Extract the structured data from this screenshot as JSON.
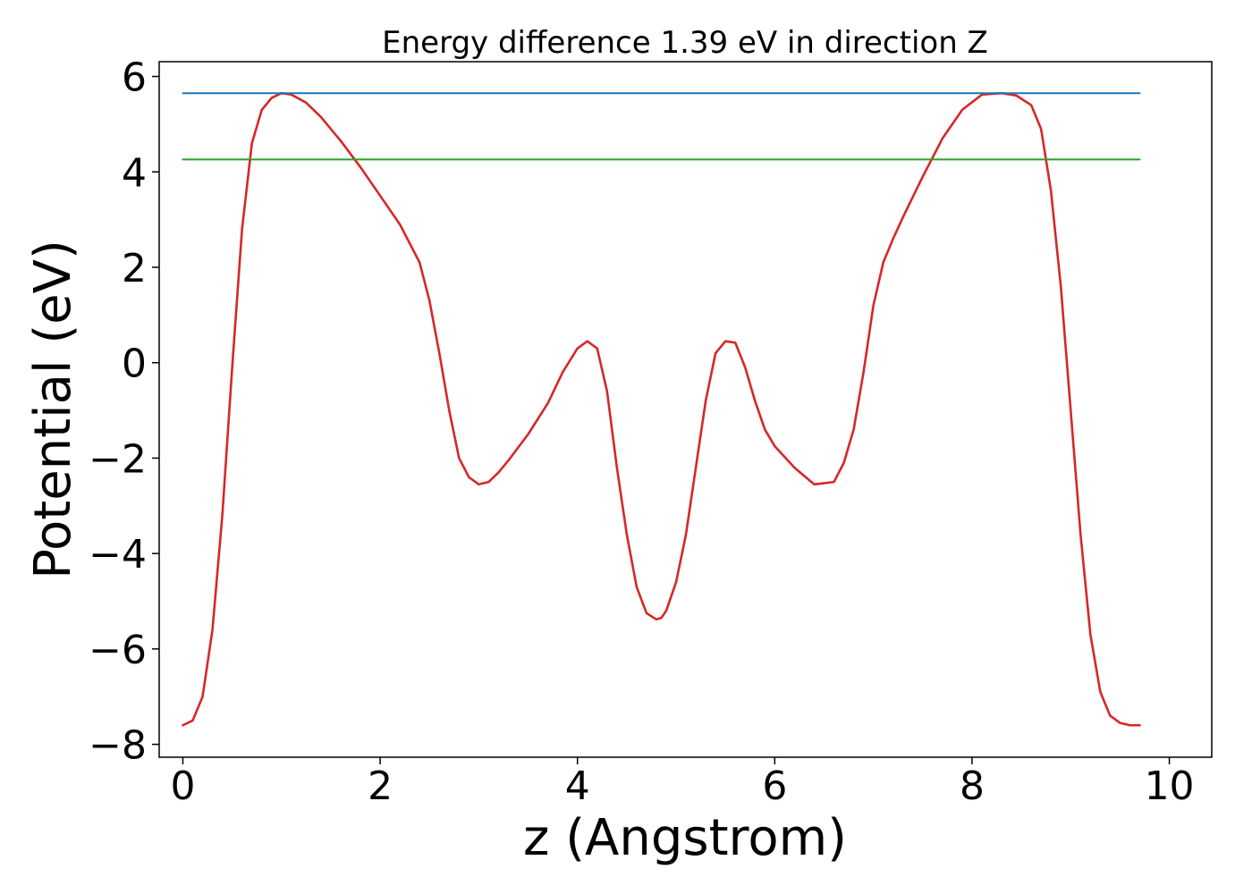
{
  "chart_data": {
    "type": "line",
    "title": "Energy difference 1.39 eV in direction Z",
    "xlabel": "z (Angstrom)",
    "ylabel": "Potential (eV)",
    "xlim": [
      -0.24,
      10.43
    ],
    "ylim": [
      -8.27,
      6.31
    ],
    "xticks": [
      0,
      2,
      4,
      6,
      8,
      10
    ],
    "xtick_labels": [
      "0",
      "2",
      "4",
      "6",
      "8",
      "10"
    ],
    "yticks": [
      -8,
      -6,
      -4,
      -2,
      0,
      2,
      4,
      6
    ],
    "ytick_labels": [
      "−8",
      "−6",
      "−4",
      "−2",
      "0",
      "2",
      "4",
      "6"
    ],
    "grid": false,
    "legend": "none",
    "series": [
      {
        "color": "#d62728",
        "x": [
          0.0,
          0.1,
          0.2,
          0.3,
          0.4,
          0.5,
          0.6,
          0.7,
          0.8,
          0.9,
          1.0,
          1.1,
          1.25,
          1.4,
          1.6,
          1.8,
          2.0,
          2.2,
          2.4,
          2.5,
          2.6,
          2.7,
          2.8,
          2.9,
          3.0,
          3.1,
          3.2,
          3.3,
          3.5,
          3.7,
          3.85,
          4.0,
          4.1,
          4.2,
          4.3,
          4.4,
          4.5,
          4.6,
          4.7,
          4.8,
          4.85,
          4.9,
          5.0,
          5.1,
          5.2,
          5.3,
          5.4,
          5.5,
          5.6,
          5.7,
          5.8,
          5.9,
          6.0,
          6.2,
          6.4,
          6.6,
          6.7,
          6.8,
          6.9,
          7.0,
          7.1,
          7.2,
          7.3,
          7.5,
          7.7,
          7.9,
          8.1,
          8.3,
          8.45,
          8.6,
          8.7,
          8.8,
          8.9,
          9.0,
          9.1,
          9.2,
          9.3,
          9.4,
          9.5,
          9.6,
          9.7
        ],
        "y": [
          -7.6,
          -7.5,
          -7.0,
          -5.6,
          -3.2,
          -0.1,
          2.8,
          4.6,
          5.3,
          5.55,
          5.65,
          5.62,
          5.45,
          5.15,
          4.65,
          4.1,
          3.5,
          2.9,
          2.1,
          1.3,
          0.2,
          -1.0,
          -2.0,
          -2.4,
          -2.55,
          -2.5,
          -2.3,
          -2.05,
          -1.5,
          -0.85,
          -0.2,
          0.3,
          0.45,
          0.3,
          -0.6,
          -2.2,
          -3.6,
          -4.7,
          -5.25,
          -5.38,
          -5.35,
          -5.2,
          -4.6,
          -3.6,
          -2.2,
          -0.8,
          0.2,
          0.45,
          0.42,
          -0.1,
          -0.8,
          -1.4,
          -1.75,
          -2.2,
          -2.55,
          -2.5,
          -2.1,
          -1.4,
          -0.2,
          1.2,
          2.1,
          2.6,
          3.05,
          3.9,
          4.7,
          5.3,
          5.62,
          5.65,
          5.6,
          5.4,
          4.9,
          3.6,
          1.6,
          -1.0,
          -3.6,
          -5.7,
          -6.9,
          -7.4,
          -7.55,
          -7.6,
          -7.6
        ]
      },
      {
        "color": "#1f77b4",
        "x": [
          0.0,
          9.7
        ],
        "y": [
          5.65,
          5.65
        ]
      },
      {
        "color": "#2ca02c",
        "x": [
          0.0,
          9.7
        ],
        "y": [
          4.26,
          4.26
        ]
      }
    ]
  }
}
